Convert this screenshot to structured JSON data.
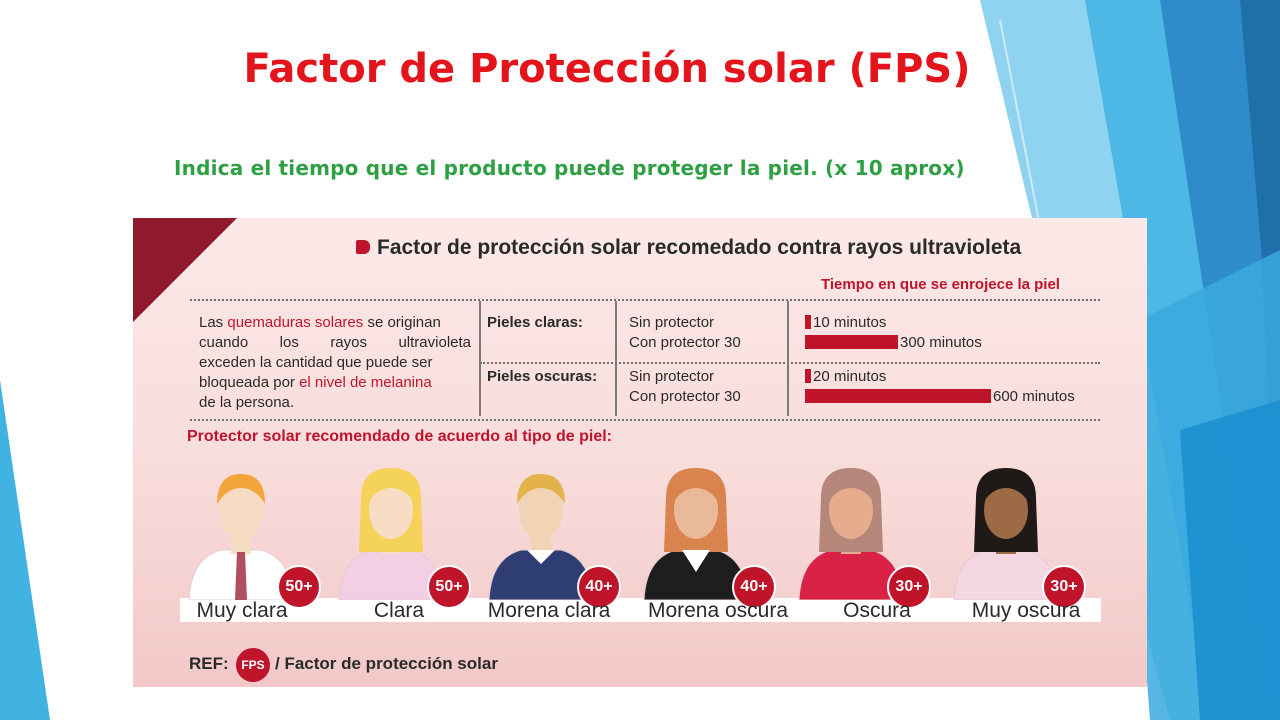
{
  "slide": {
    "title": "Factor de Protección solar (FPS)",
    "subtitle": "Indica el tiempo que el producto puede proteger la piel. (x 10 aprox)"
  },
  "infographic": {
    "heading": "Factor de protección solar recomedado contra rayos ultravioleta",
    "time_header": "Tiempo en que se enrojece la piel",
    "intro": {
      "p1": "Las ",
      "hl1": "quemaduras solares",
      "p2": " se originan",
      "line2": "cuando los rayos ultravioleta",
      "line3": "exceden la cantidad que puede ser",
      "p4": "bloqueada por ",
      "hl2": "el nivel de melanina",
      "line5": "de la persona."
    },
    "rows": [
      {
        "skin": "Pieles claras:",
        "without": "Sin protector",
        "with": "Con protector 30",
        "without_time": "10 minutos",
        "with_time": "300 minutos",
        "without_minutes": 10,
        "with_minutes": 300
      },
      {
        "skin": "Pieles oscuras:",
        "without": "Sin protector",
        "with": "Con protector 30",
        "without_time": "20 minutos",
        "with_time": "600 minutos",
        "without_minutes": 20,
        "with_minutes": 600
      }
    ],
    "section2_heading": "Protector solar recomendado de acuerdo al tipo de piel:",
    "skin_types": [
      {
        "label": "Muy clara",
        "fps": "50+",
        "skin": "#f7dcc4",
        "hair": "#f2a53b",
        "clothes": "#ffffff"
      },
      {
        "label": "Clara",
        "fps": "50+",
        "skin": "#f8dcc4",
        "hair": "#f5d25a",
        "clothes": "#f4cfe4"
      },
      {
        "label": "Morena clara",
        "fps": "40+",
        "skin": "#f2d3b3",
        "hair": "#e3b24a",
        "clothes": "#2f3e72"
      },
      {
        "label": "Morena oscura",
        "fps": "40+",
        "skin": "#e9b99a",
        "hair": "#d9834f",
        "clothes": "#1e1e1e"
      },
      {
        "label": "Oscura",
        "fps": "30+",
        "skin": "#e5ad8e",
        "hair": "#b5867a",
        "clothes": "#d92245"
      },
      {
        "label": "Muy oscura",
        "fps": "30+",
        "skin": "#9c6a45",
        "hair": "#1f1a18",
        "clothes": "#f5d7e3"
      }
    ],
    "ref_label": "REF:",
    "ref_fps": "FPS",
    "ref_text": "/ Factor de protección solar"
  },
  "colors": {
    "title": "#e3141b",
    "subtitle": "#2ea043",
    "accent_red": "#c0142b",
    "deco_blue": "#2a86c8"
  }
}
